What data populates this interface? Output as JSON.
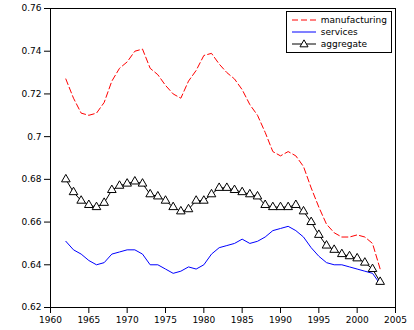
{
  "chart_data": {
    "type": "line",
    "x": [
      1962,
      1963,
      1964,
      1965,
      1966,
      1967,
      1968,
      1969,
      1970,
      1971,
      1972,
      1973,
      1974,
      1975,
      1976,
      1977,
      1978,
      1979,
      1980,
      1981,
      1982,
      1983,
      1984,
      1985,
      1986,
      1987,
      1988,
      1989,
      1990,
      1991,
      1992,
      1993,
      1994,
      1995,
      1996,
      1997,
      1998,
      1999,
      2000,
      2001,
      2002,
      2003
    ],
    "series": [
      {
        "name": "manufacturing",
        "color": "#ff0000",
        "line_style": "dashed",
        "values": [
          0.727,
          0.718,
          0.711,
          0.71,
          0.711,
          0.716,
          0.726,
          0.732,
          0.735,
          0.74,
          0.741,
          0.732,
          0.729,
          0.724,
          0.72,
          0.718,
          0.726,
          0.731,
          0.738,
          0.739,
          0.734,
          0.73,
          0.727,
          0.722,
          0.715,
          0.71,
          0.702,
          0.693,
          0.691,
          0.693,
          0.691,
          0.686,
          0.676,
          0.667,
          0.659,
          0.655,
          0.653,
          0.653,
          0.654,
          0.653,
          0.65,
          0.638
        ]
      },
      {
        "name": "services",
        "color": "#0000ff",
        "line_style": "solid",
        "values": [
          0.651,
          0.647,
          0.645,
          0.642,
          0.64,
          0.641,
          0.645,
          0.646,
          0.647,
          0.647,
          0.645,
          0.64,
          0.64,
          0.638,
          0.636,
          0.637,
          0.639,
          0.638,
          0.64,
          0.645,
          0.648,
          0.649,
          0.65,
          0.652,
          0.65,
          0.651,
          0.653,
          0.656,
          0.657,
          0.658,
          0.656,
          0.653,
          0.648,
          0.644,
          0.641,
          0.64,
          0.64,
          0.639,
          0.638,
          0.637,
          0.636,
          0.631
        ]
      },
      {
        "name": "aggregate",
        "color": "#000000",
        "line_style": "solid",
        "marker": "triangle",
        "values": [
          0.68,
          0.674,
          0.67,
          0.668,
          0.667,
          0.669,
          0.675,
          0.677,
          0.678,
          0.679,
          0.678,
          0.673,
          0.672,
          0.67,
          0.667,
          0.665,
          0.666,
          0.67,
          0.67,
          0.673,
          0.676,
          0.676,
          0.675,
          0.674,
          0.673,
          0.672,
          0.668,
          0.667,
          0.667,
          0.667,
          0.668,
          0.665,
          0.66,
          0.654,
          0.649,
          0.647,
          0.645,
          0.644,
          0.643,
          0.641,
          0.638,
          0.632
        ]
      }
    ],
    "xlim": [
      1960,
      2005
    ],
    "xticks": [
      1960,
      1965,
      1970,
      1975,
      1980,
      1985,
      1990,
      1995,
      2000,
      2005
    ],
    "ylim": [
      0.62,
      0.76
    ],
    "yticks": [
      0.62,
      0.64,
      0.66,
      0.68,
      0.7,
      0.72,
      0.74,
      0.76
    ],
    "legend": "top-right",
    "grid": false
  }
}
